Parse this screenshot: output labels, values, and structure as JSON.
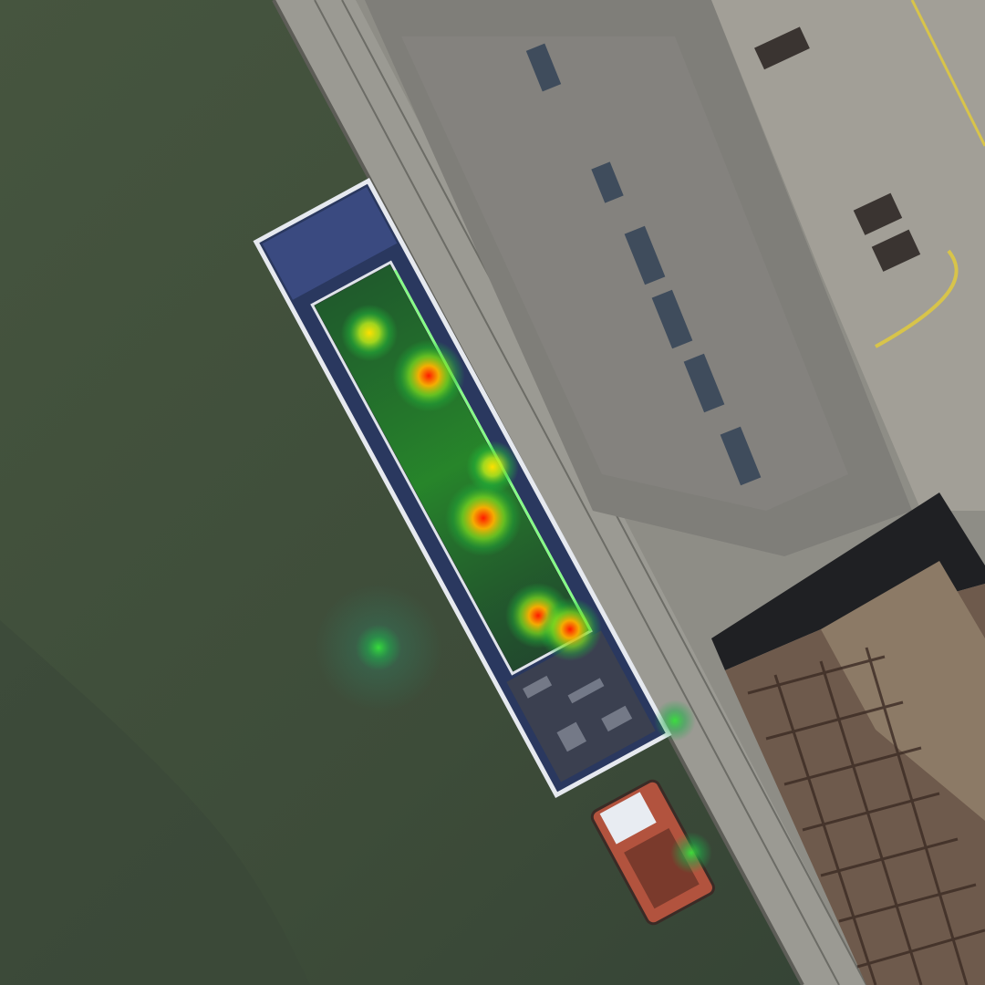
{
  "image": {
    "kind": "aerial satellite photo with heatmap overlay",
    "caption": ""
  },
  "colors": {
    "water": "#45543f",
    "water_dark": "#39473a",
    "quay": "#8c8c86",
    "quay_edge": "#6f6f69",
    "yard": "#9e9b93",
    "barge_hull": "#2b3a63",
    "barge_deck": "#2f3e3a",
    "barge_rail": "#e6e9ef",
    "tug": "#b2533e",
    "building_roof": "#1e1f22",
    "building_rust": "#7b5c48",
    "heat_hot": "#ff1f00",
    "heat_warm": "#ffd200",
    "heat_cool": "#2bd42b"
  },
  "heatmap": {
    "hotspots": [
      {
        "id": "hs-1",
        "intensity": 0.55
      },
      {
        "id": "hs-2",
        "intensity": 0.9
      },
      {
        "id": "hs-3",
        "intensity": 0.45
      },
      {
        "id": "hs-4",
        "intensity": 1.0
      },
      {
        "id": "hs-5",
        "intensity": 0.75
      },
      {
        "id": "hs-6",
        "intensity": 0.7
      },
      {
        "id": "hs-7",
        "intensity": 0.3
      },
      {
        "id": "hs-8",
        "intensity": 0.2
      },
      {
        "id": "hs-9",
        "intensity": 0.2
      }
    ]
  }
}
